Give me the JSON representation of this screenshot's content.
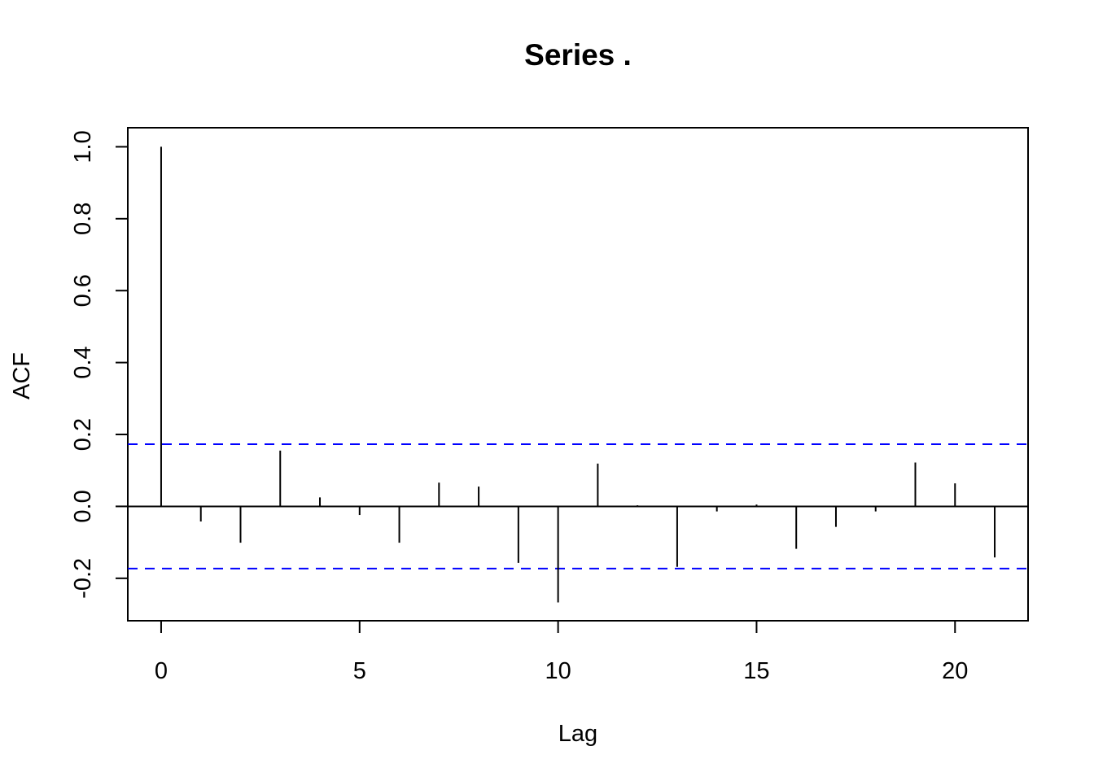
{
  "chart_data": {
    "type": "bar",
    "title": "Series  .",
    "xlabel": "Lag",
    "ylabel": "ACF",
    "x": [
      0,
      1,
      2,
      3,
      4,
      5,
      6,
      7,
      8,
      9,
      10,
      11,
      12,
      13,
      14,
      15,
      16,
      17,
      18,
      19,
      20,
      21
    ],
    "values": [
      1.0,
      -0.042,
      -0.101,
      0.155,
      0.025,
      -0.024,
      -0.101,
      0.066,
      0.055,
      -0.157,
      -0.267,
      0.119,
      0.003,
      -0.168,
      -0.014,
      0.005,
      -0.118,
      -0.057,
      -0.014,
      0.122,
      0.064,
      -0.142
    ],
    "xlim": [
      -0.84,
      21.84
    ],
    "ylim": [
      -0.318,
      1.053
    ],
    "x_ticks": [
      0,
      5,
      10,
      15,
      20
    ],
    "y_ticks": [
      -0.2,
      0.0,
      0.2,
      0.4,
      0.6,
      0.8,
      1.0
    ],
    "y_tick_labels": [
      "-0.2",
      "0.0",
      "0.2",
      "0.4",
      "0.6",
      "0.8",
      "1.0"
    ],
    "confidence_bound": 0.173,
    "confidence_color": "#0000ff",
    "grid": false,
    "legend": null
  }
}
